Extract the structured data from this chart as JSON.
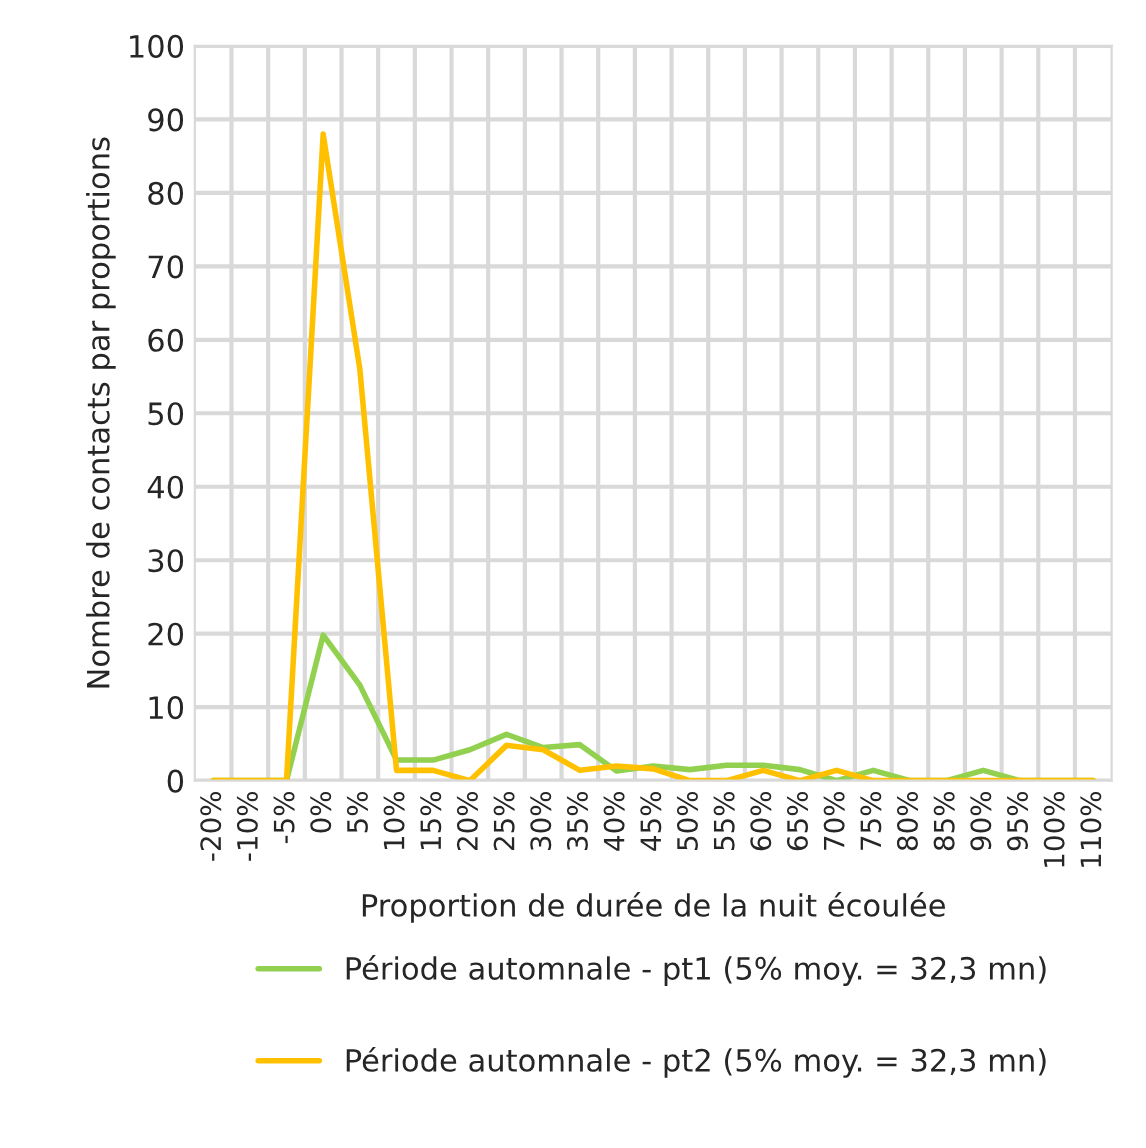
{
  "chart_data": {
    "type": "line",
    "xlabel": "Proportion de durée de la nuit écoulée",
    "ylabel": "Nombre de contacts par proportions",
    "categories": [
      "-20%",
      "-10%",
      "-5%",
      "0%",
      "5%",
      "10%",
      "15%",
      "20%",
      "25%",
      "30%",
      "35%",
      "40%",
      "45%",
      "50%",
      "55%",
      "60%",
      "65%",
      "70%",
      "75%",
      "80%",
      "85%",
      "90%",
      "95%",
      "100%",
      "110%"
    ],
    "series": [
      {
        "name": "Période automnale - pt1 (5% moy. = 32,3 mn)",
        "color": "#92d050",
        "values": [
          0,
          0,
          0,
          19.8,
          13,
          2.8,
          2.8,
          4.2,
          6.3,
          4.5,
          4.9,
          1.3,
          2,
          1.5,
          2.1,
          2.1,
          1.5,
          0,
          1.4,
          0,
          0,
          1.4,
          0,
          0,
          0
        ]
      },
      {
        "name": "Période automnale - pt2 (5% moy. = 32,3 mn)",
        "color": "#ffc000",
        "values": [
          0,
          0,
          0,
          88,
          56,
          1.4,
          1.4,
          0,
          4.8,
          4.2,
          1.4,
          2,
          1.6,
          0,
          0,
          1.4,
          0,
          1.4,
          0,
          0,
          0,
          0,
          0,
          0,
          0
        ]
      }
    ],
    "ylim": [
      0,
      100
    ],
    "yticks": [
      0,
      10,
      20,
      30,
      40,
      50,
      60,
      70,
      80,
      90,
      100
    ],
    "grid": true,
    "legend": "bottom",
    "marker": "none",
    "line_style": "solid"
  }
}
